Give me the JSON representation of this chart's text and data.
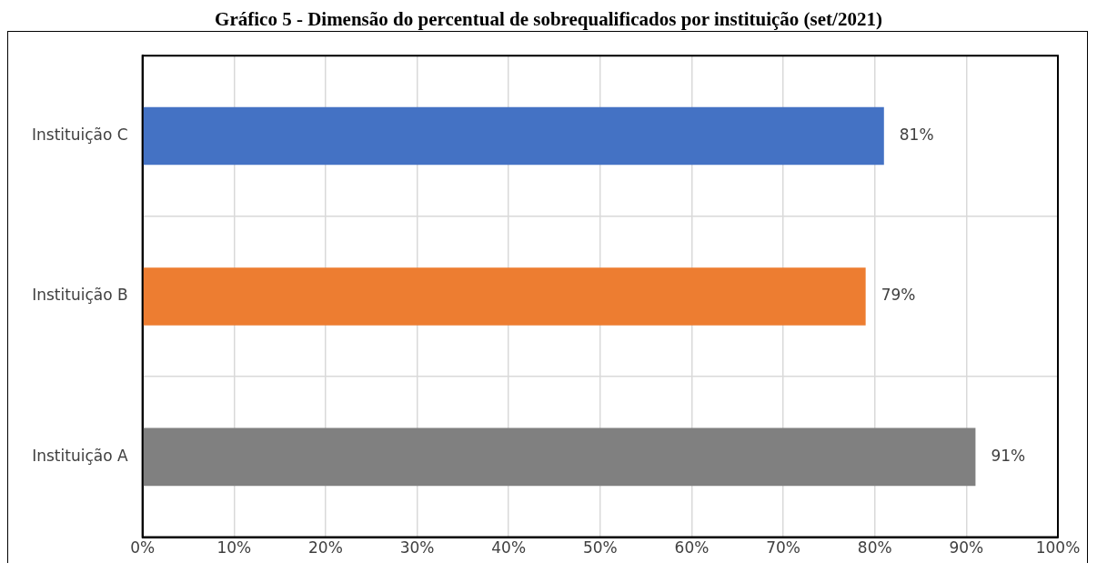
{
  "chart_data": {
    "type": "bar",
    "orientation": "horizontal",
    "title": "Gráfico 5 - Dimensão do percentual de sobrequalificados por instituição (set/2021)",
    "categories": [
      "Instituição C",
      "Instituição B",
      "Instituição A"
    ],
    "values": [
      81,
      79,
      91
    ],
    "colors": [
      "#4472c4",
      "#ed7d31",
      "#808080"
    ],
    "value_labels": [
      "81%",
      "79%",
      "91%"
    ],
    "xlim": [
      0,
      100
    ],
    "xticks": [
      {
        "value": 0,
        "label": "0%"
      },
      {
        "value": 10,
        "label": "10%"
      },
      {
        "value": 20,
        "label": "20%"
      },
      {
        "value": 30,
        "label": "30%"
      },
      {
        "value": 40,
        "label": "40%"
      },
      {
        "value": 50,
        "label": "50%"
      },
      {
        "value": 60,
        "label": "60%"
      },
      {
        "value": 70,
        "label": "70%"
      },
      {
        "value": 80,
        "label": "80%"
      },
      {
        "value": 90,
        "label": "90%"
      },
      {
        "value": 100,
        "label": "100%"
      }
    ],
    "grid": true
  }
}
